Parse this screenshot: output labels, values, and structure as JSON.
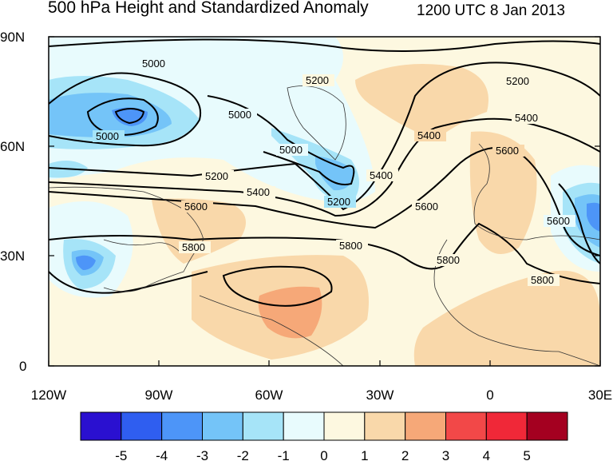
{
  "title": "500 hPa Height and Standardized Anomaly",
  "valid_time": "1200 UTC 8 Jan 2013",
  "axes": {
    "lat_ticks": [
      "90N",
      "60N",
      "30N",
      "0"
    ],
    "lon_ticks": [
      "120W",
      "90W",
      "60W",
      "30W",
      "0",
      "30E"
    ]
  },
  "contour_labels": [
    "5000",
    "5000",
    "5000",
    "5000",
    "5200",
    "5200",
    "5200",
    "5200",
    "5400",
    "5400",
    "5400",
    "5400",
    "5600",
    "5600",
    "5600",
    "5600",
    "5800",
    "5800",
    "5800",
    "5800"
  ],
  "colorbar": {
    "labels": [
      "-5",
      "-4",
      "-3",
      "-2",
      "-1",
      "0",
      "1",
      "2",
      "3",
      "4",
      "5"
    ],
    "colors": [
      "#2a10d0",
      "#2f5ef0",
      "#4d95f8",
      "#74c4f8",
      "#a6e4f8",
      "#e8fbfd",
      "#fdf8e0",
      "#f9d8aa",
      "#f6a878",
      "#f24848",
      "#f02838",
      "#a40020"
    ]
  }
}
